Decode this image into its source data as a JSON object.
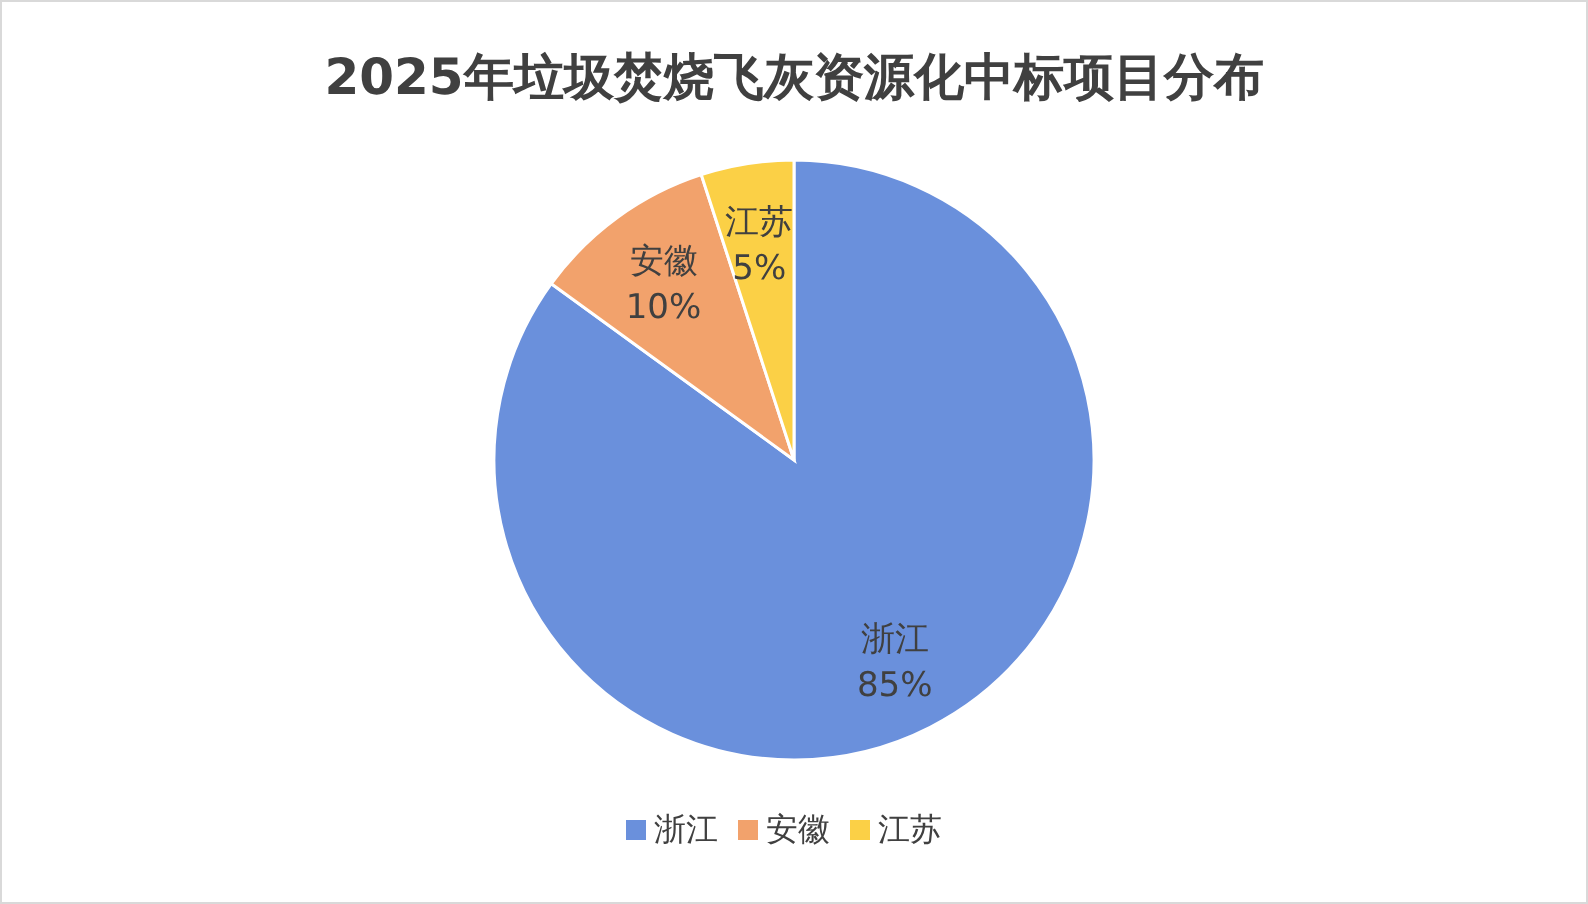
{
  "chart_data": {
    "type": "pie",
    "title": "2025年垃圾焚烧飞灰资源化中标项目分布",
    "categories": [
      "浙江",
      "安徽",
      "江苏"
    ],
    "values": [
      85,
      10,
      5
    ],
    "value_labels": [
      "85%",
      "10%",
      "5%"
    ],
    "colors": [
      "#6a90dc",
      "#f2a26c",
      "#fbd046"
    ],
    "legend": "bottom"
  }
}
